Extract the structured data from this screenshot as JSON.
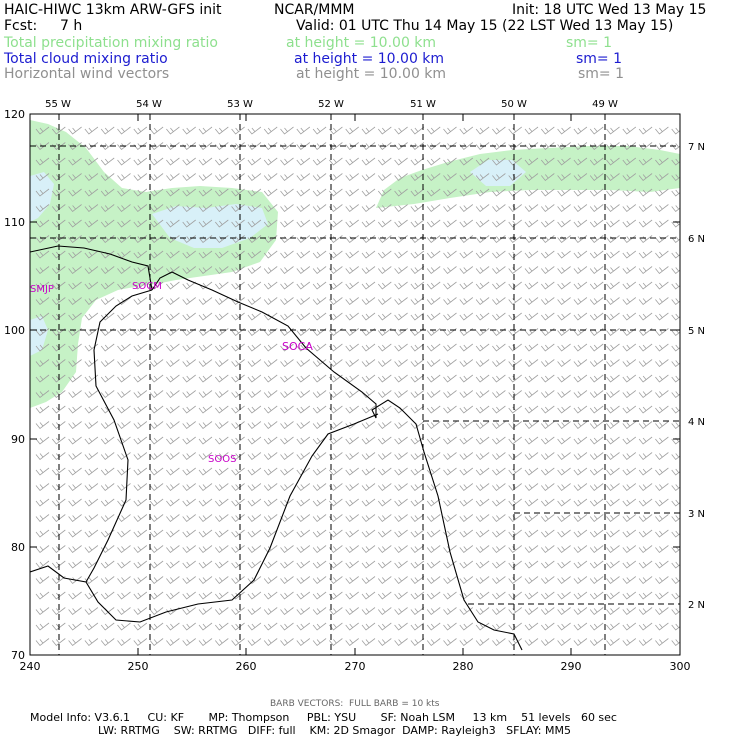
{
  "header": {
    "model": "HAIC-HIWC 13km ARW-GFS init",
    "org": "NCAR/MMM",
    "init": "Init: 18 UTC Wed 13 May 15",
    "fcst_label": "Fcst:",
    "fcst_value": "7 h",
    "valid": "Valid: 01 UTC Thu 14 May 15 (22 LST Wed 13 May 15)",
    "fields": [
      {
        "name": "Total precipitation mixing ratio",
        "height": "at height = 10.00 km",
        "sm": "sm= 1",
        "color": "#8ee08e"
      },
      {
        "name": "Total cloud mixing ratio",
        "height": "at height = 10.00 km",
        "sm": "sm= 1",
        "color": "#1c1cd0"
      },
      {
        "name": "Horizontal wind vectors",
        "height": "at height = 10.00 km",
        "sm": "sm= 1",
        "color": "#909090"
      }
    ]
  },
  "map": {
    "lon_labels_top": [
      "55 W",
      "54 W",
      "53 W",
      "52 W",
      "51 W",
      "50 W",
      "49 W"
    ],
    "lat_labels_right": [
      "7 N",
      "6 N",
      "5 N",
      "4 N",
      "3 N",
      "2 N"
    ],
    "x_ticks": [
      "240",
      "250",
      "260",
      "270",
      "280",
      "290",
      "300"
    ],
    "y_ticks": [
      "70",
      "80",
      "90",
      "100",
      "110",
      "120"
    ],
    "stations": [
      "SMJP",
      "SOCM",
      "SOCA",
      "SOOS"
    ],
    "colors": {
      "precip": "#c6f2c6",
      "cloud": "#d8f0f8",
      "barb": "#a0a0a0",
      "station": "#c800c8"
    }
  },
  "footer": {
    "barb_note": "BARB VECTORS:  FULL BARB = 10 kts",
    "line1": "Model Info: V3.6.1     CU: KF       MP: Thompson     PBL: YSU       SF: Noah LSM     13 km    51 levels   60 sec",
    "line2": "LW: RRTMG    SW: RRTMG   DIFF: full    KM: 2D Smagor  DAMP: Rayleigh3   SFLAY: MM5"
  }
}
